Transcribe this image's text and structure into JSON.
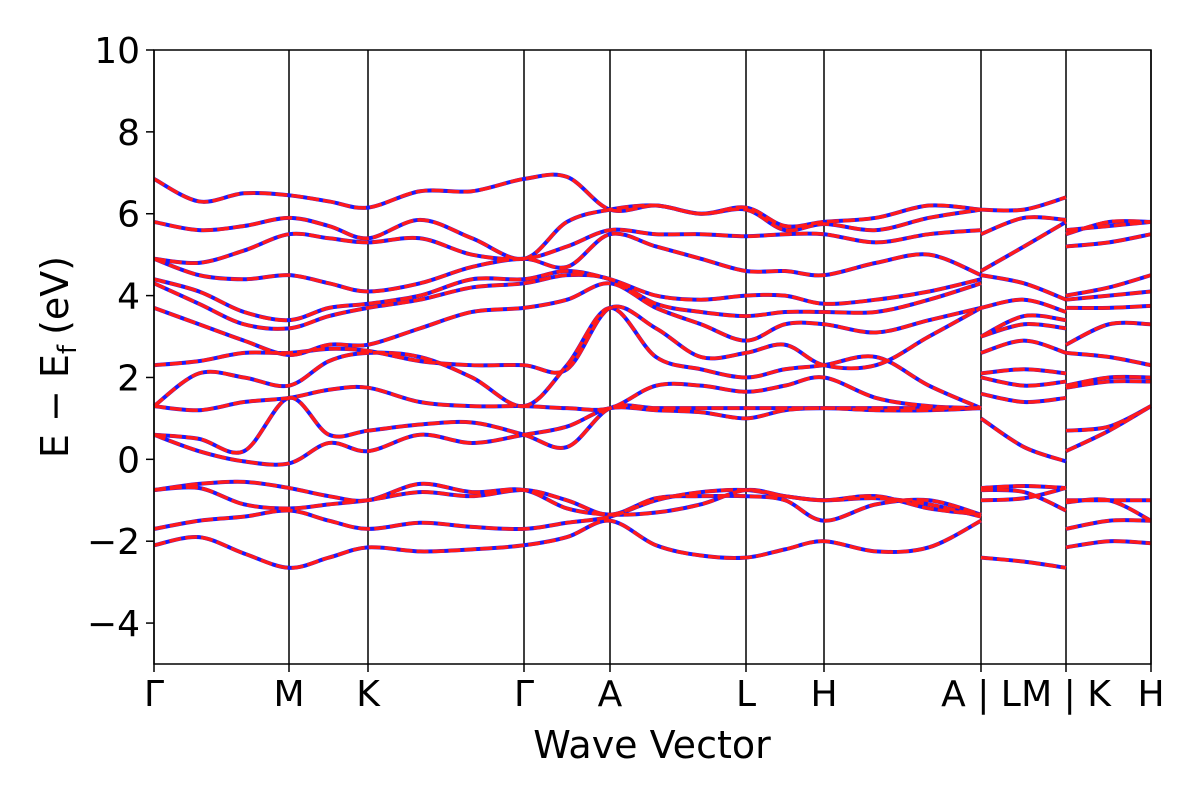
{
  "chart_data": {
    "type": "line",
    "xlabel": "Wave Vector",
    "ylabel": {
      "main": "E − E",
      "sub": "f",
      "unit": "(eV)"
    },
    "xlim": [
      0,
      9.97
    ],
    "ylim": [
      -5,
      10
    ],
    "xticks": [
      {
        "value": 0,
        "label": "Γ"
      },
      {
        "value": 1.35,
        "label": "M"
      },
      {
        "value": 2.14,
        "label": "K"
      },
      {
        "value": 3.7,
        "label": "Γ"
      },
      {
        "value": 4.56,
        "label": "A"
      },
      {
        "value": 5.92,
        "label": "L"
      },
      {
        "value": 6.7,
        "label": "H"
      },
      {
        "value": 8.27,
        "label": "A | L"
      },
      {
        "value": 9.12,
        "label": "M | K"
      },
      {
        "value": 9.97,
        "label": "H"
      }
    ],
    "yticks": [
      {
        "value": -4,
        "label": "−4"
      },
      {
        "value": -2,
        "label": "−2"
      },
      0,
      2,
      4,
      6,
      8,
      10
    ],
    "x_grid": true,
    "line_colors": [
      "#1a1aff",
      "#ff1a1a"
    ],
    "x": [
      0,
      0.45,
      0.9,
      1.35,
      1.75,
      2.14,
      2.66,
      3.18,
      3.7,
      4.13,
      4.56,
      5.02,
      5.47,
      5.92,
      6.31,
      6.7,
      7.22,
      7.75,
      8.27,
      8.27,
      8.27,
      8.7,
      9.12,
      9.12,
      9.12,
      9.55,
      9.97
    ],
    "series": [
      {
        "values": [
          -2.1,
          -1.9,
          -2.3,
          -2.65,
          -2.4,
          -2.15,
          -2.25,
          -2.2,
          -2.1,
          -1.9,
          -1.5,
          -2.1,
          -2.35,
          -2.4,
          -2.2,
          -2.0,
          -2.25,
          -2.15,
          -1.5,
          null,
          -2.4,
          -2.5,
          -2.65,
          null,
          -2.15,
          -2.0,
          -2.05
        ]
      },
      {
        "values": [
          -1.7,
          -1.5,
          -1.4,
          -1.25,
          -1.5,
          -1.7,
          -1.55,
          -1.65,
          -1.7,
          -1.55,
          -1.4,
          -1.0,
          -0.8,
          -0.75,
          -0.9,
          -1.0,
          -0.95,
          -1.1,
          -1.4,
          null,
          -0.75,
          -0.8,
          -1.25,
          null,
          -1.7,
          -1.5,
          -1.5
        ]
      },
      {
        "values": [
          -0.75,
          -0.7,
          -1.1,
          -1.2,
          -1.1,
          -1.0,
          -0.8,
          -0.9,
          -0.75,
          -1.0,
          -1.35,
          -0.95,
          -0.9,
          -0.9,
          -1.0,
          -1.5,
          -1.1,
          -1.0,
          -1.35,
          null,
          -1.0,
          -0.95,
          -0.7,
          null,
          -1.0,
          -1.0,
          -1.0
        ]
      },
      {
        "values": [
          -0.75,
          -0.6,
          -0.55,
          -0.7,
          -0.9,
          -1.0,
          -0.6,
          -0.8,
          -0.75,
          -1.2,
          -1.35,
          -1.3,
          -1.1,
          -0.75,
          -0.9,
          -1.0,
          -0.9,
          -1.2,
          -1.35,
          null,
          -0.7,
          -0.65,
          -0.7,
          null,
          -1.05,
          -1.0,
          -1.5
        ]
      },
      {
        "values": [
          0.6,
          0.2,
          -0.05,
          -0.1,
          0.4,
          0.2,
          0.6,
          0.4,
          0.6,
          0.8,
          1.25,
          1.2,
          1.15,
          1.0,
          1.2,
          1.25,
          1.2,
          1.2,
          1.25,
          null,
          1.0,
          0.3,
          -0.05,
          null,
          0.2,
          0.7,
          1.3
        ]
      },
      {
        "values": [
          0.6,
          0.5,
          0.2,
          1.5,
          0.6,
          0.7,
          0.85,
          0.9,
          0.6,
          0.3,
          1.25,
          1.25,
          1.25,
          1.25,
          1.25,
          1.25,
          1.25,
          1.25,
          1.25,
          null,
          1.6,
          1.4,
          1.5,
          null,
          0.7,
          0.8,
          1.3
        ]
      },
      {
        "values": [
          1.3,
          1.2,
          1.4,
          1.5,
          1.7,
          1.75,
          1.4,
          1.3,
          1.3,
          1.25,
          1.25,
          1.8,
          1.8,
          1.65,
          1.8,
          2.0,
          1.5,
          1.3,
          1.25,
          null,
          2.0,
          1.8,
          1.9,
          null,
          1.75,
          1.9,
          1.9
        ]
      },
      {
        "values": [
          1.3,
          2.1,
          2.0,
          1.8,
          2.4,
          2.6,
          2.5,
          2.0,
          1.3,
          2.3,
          3.7,
          2.5,
          2.2,
          2.0,
          2.2,
          2.3,
          2.5,
          1.8,
          1.25,
          null,
          2.1,
          2.2,
          2.1,
          null,
          1.8,
          2.0,
          2.0
        ]
      },
      {
        "values": [
          2.3,
          2.4,
          2.6,
          2.6,
          2.7,
          2.65,
          2.4,
          2.3,
          2.3,
          2.2,
          3.7,
          3.2,
          2.5,
          2.6,
          2.8,
          2.3,
          2.3,
          3.0,
          3.7,
          null,
          2.6,
          2.9,
          2.6,
          null,
          2.6,
          2.5,
          2.3
        ]
      },
      {
        "values": [
          3.7,
          3.3,
          2.9,
          2.55,
          2.8,
          2.8,
          3.2,
          3.6,
          3.7,
          3.9,
          4.3,
          3.7,
          3.3,
          2.9,
          3.3,
          3.3,
          3.1,
          3.4,
          3.7,
          null,
          3.0,
          3.3,
          3.2,
          null,
          2.8,
          3.3,
          3.3
        ]
      },
      {
        "values": [
          4.3,
          3.8,
          3.3,
          3.2,
          3.5,
          3.7,
          3.9,
          4.2,
          4.3,
          4.5,
          4.4,
          3.8,
          3.6,
          3.5,
          3.6,
          3.6,
          3.6,
          3.9,
          4.3,
          null,
          3.0,
          3.5,
          3.4,
          null,
          3.7,
          3.7,
          3.75
        ]
      },
      {
        "values": [
          4.4,
          4.1,
          3.6,
          3.4,
          3.7,
          3.8,
          4.0,
          4.4,
          4.4,
          4.6,
          4.4,
          4.0,
          3.9,
          4.0,
          4.0,
          3.8,
          3.9,
          4.1,
          4.4,
          null,
          3.7,
          3.9,
          3.6,
          null,
          3.9,
          4.0,
          4.1
        ]
      },
      {
        "values": [
          4.9,
          4.5,
          4.4,
          4.5,
          4.3,
          4.1,
          4.3,
          4.7,
          4.9,
          4.7,
          5.5,
          5.2,
          4.9,
          4.6,
          4.6,
          4.5,
          4.8,
          5.0,
          4.5,
          null,
          4.5,
          4.3,
          3.9,
          null,
          4.0,
          4.2,
          4.5
        ]
      },
      {
        "values": [
          4.9,
          4.8,
          5.1,
          5.5,
          5.4,
          5.3,
          5.4,
          5.0,
          4.9,
          5.2,
          5.6,
          5.5,
          5.5,
          5.45,
          5.5,
          5.5,
          5.3,
          5.5,
          5.6,
          null,
          4.6,
          5.2,
          5.8,
          null,
          5.2,
          5.3,
          5.5
        ]
      },
      {
        "values": [
          5.8,
          5.6,
          5.7,
          5.9,
          5.7,
          5.4,
          5.85,
          5.4,
          4.9,
          5.8,
          6.1,
          6.2,
          6.0,
          6.1,
          5.6,
          5.75,
          5.6,
          5.9,
          6.1,
          null,
          5.5,
          5.9,
          5.85,
          null,
          5.5,
          5.8,
          5.8
        ]
      },
      {
        "values": [
          6.85,
          6.3,
          6.5,
          6.45,
          6.3,
          6.15,
          6.55,
          6.55,
          6.85,
          6.9,
          6.1,
          6.2,
          6.0,
          6.15,
          5.7,
          5.8,
          5.9,
          6.2,
          6.1,
          null,
          6.1,
          6.1,
          6.4,
          null,
          5.6,
          5.7,
          5.8
        ]
      }
    ]
  }
}
